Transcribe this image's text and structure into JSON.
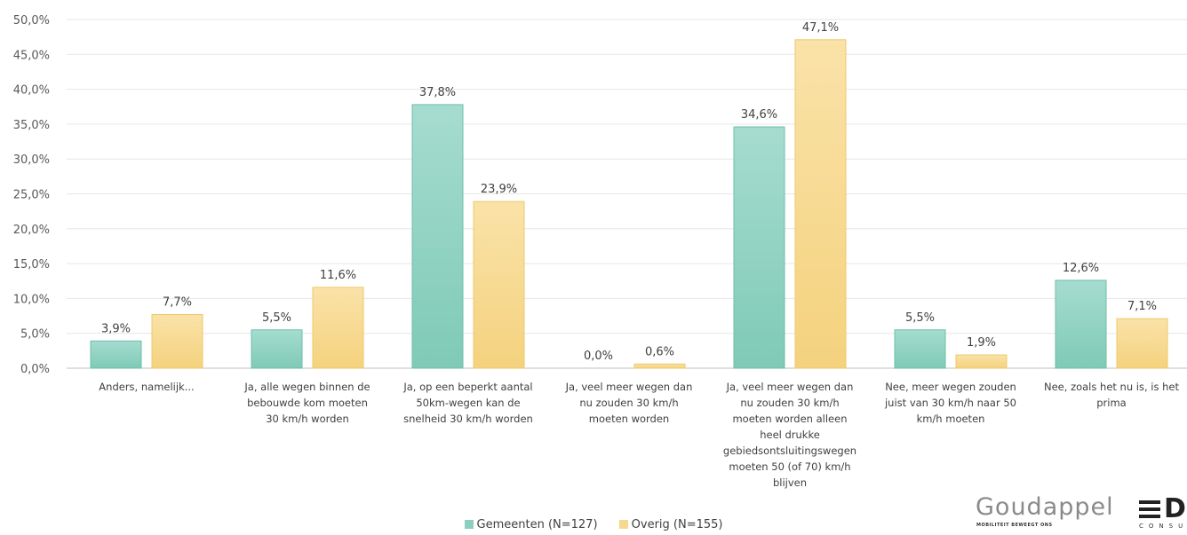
{
  "chart_data": {
    "type": "bar",
    "title": "",
    "xlabel": "",
    "ylabel": "",
    "ylim": [
      0,
      50
    ],
    "yticks": [
      "0,0%",
      "5,0%",
      "10,0%",
      "15,0%",
      "20,0%",
      "25,0%",
      "30,0%",
      "35,0%",
      "40,0%",
      "45,0%",
      "50,0%"
    ],
    "grid": true,
    "legend_position": "bottom",
    "categories": [
      [
        "Anders, namelijk..."
      ],
      [
        "Ja, alle wegen binnen de",
        "bebouwde kom moeten",
        "30 km/h worden"
      ],
      [
        "Ja, op een beperkt aantal",
        "50km-wegen kan de",
        "snelheid 30 km/h worden"
      ],
      [
        "Ja, veel meer wegen dan",
        "nu zouden 30 km/h",
        "moeten worden"
      ],
      [
        "Ja, veel meer wegen dan",
        "nu zouden 30 km/h",
        "moeten worden alleen",
        "heel drukke",
        "gebiedsontsluitingswegen",
        "moeten 50 (of 70) km/h",
        "blijven"
      ],
      [
        "Nee, meer wegen zouden",
        "juist van 30 km/h naar 50",
        "km/h moeten"
      ],
      [
        "Nee, zoals het nu is, is het",
        "prima"
      ]
    ],
    "series": [
      {
        "name": "Gemeenten (N=127)",
        "color": "#8ccfbf",
        "values": [
          3.9,
          5.5,
          37.8,
          0.0,
          34.6,
          5.5,
          12.6
        ],
        "labels": [
          "3,9%",
          "5,5%",
          "37,8%",
          "0,0%",
          "34,6%",
          "5,5%",
          "12,6%"
        ]
      },
      {
        "name": "Overig (N=155)",
        "color": "#f6d88f",
        "values": [
          7.7,
          11.6,
          23.9,
          0.6,
          47.1,
          1.9,
          7.1
        ],
        "labels": [
          "7,7%",
          "11,6%",
          "23,9%",
          "0,6%",
          "47,1%",
          "1,9%",
          "7,1%"
        ]
      }
    ]
  },
  "logo": {
    "name": "Goudappel",
    "tagline": "MOBILITEIT BEWEEGT ONS",
    "mark": "D",
    "sub": "CONSULT"
  }
}
